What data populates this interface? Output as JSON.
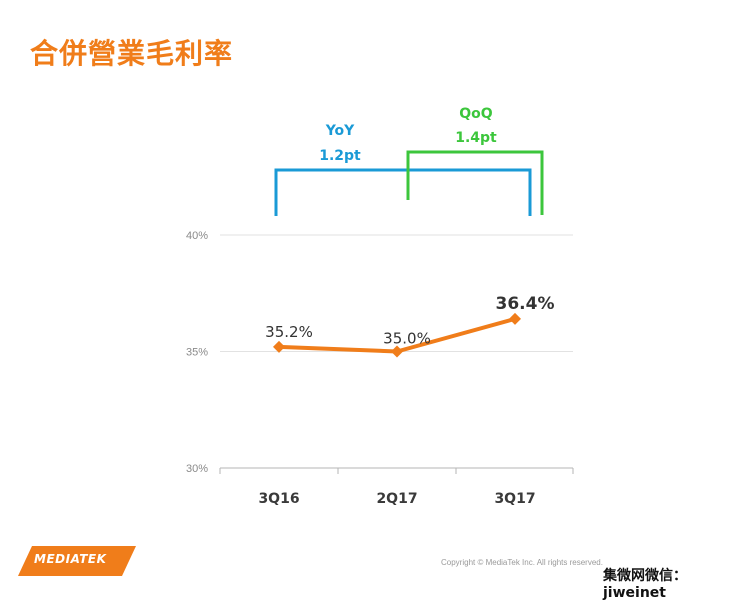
{
  "title": "合併營業毛利率",
  "brand": "MEDIATEK",
  "copyright": "Copyright © MediaTek Inc. All rights reserved.",
  "watermark": "集微网微信：jiweinet",
  "colors": {
    "title": "#f07d1a",
    "series": "#f07d1a",
    "yoy": "#1a9ad6",
    "qoq": "#3cc63c",
    "brand": "#f07d1a"
  },
  "annotations": {
    "yoy": {
      "label": "YoY",
      "value": "1.2pt"
    },
    "qoq": {
      "label": "QoQ",
      "value": "1.4pt"
    }
  },
  "chart_data": {
    "type": "line",
    "categories": [
      "3Q16",
      "2Q17",
      "3Q17"
    ],
    "series": [
      {
        "values": [
          35.2,
          35.0,
          36.4
        ],
        "labels": [
          "35.2%",
          "35.0%",
          "36.4%"
        ]
      }
    ],
    "ylim": [
      30,
      40
    ],
    "yticks": [
      30,
      35,
      40
    ],
    "ytick_labels": [
      "30%",
      "35%",
      "40%"
    ],
    "grid": true,
    "xlabel": "",
    "ylabel": ""
  }
}
